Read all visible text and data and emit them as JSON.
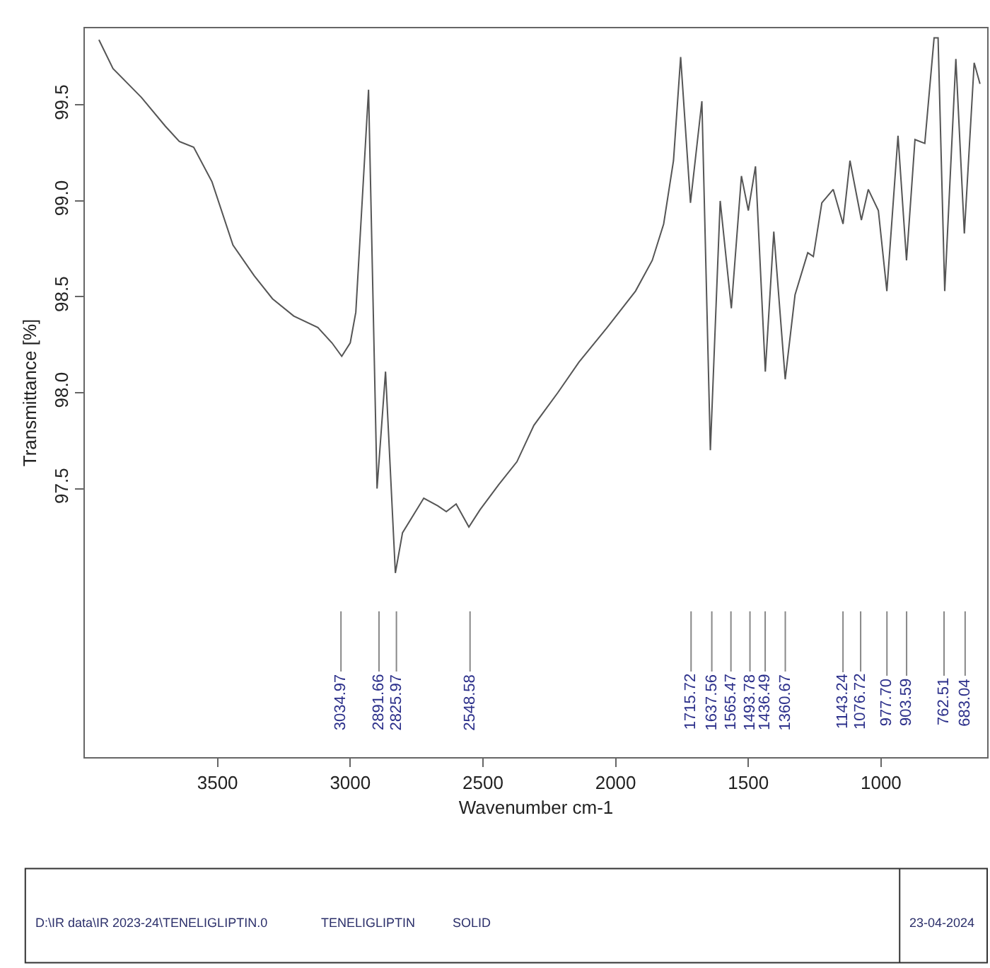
{
  "chart_data": {
    "type": "line",
    "xlabel": "Wavenumber cm-1",
    "ylabel": "Transmittance [%]",
    "color": "#555555",
    "x": [
      3947,
      3894,
      3787,
      3697,
      3644,
      3590,
      3521,
      3442,
      3362,
      3293,
      3213,
      3122,
      3069,
      3032,
      3000,
      2979,
      2931,
      2899,
      2867,
      2830,
      2803,
      2723,
      2670,
      2638,
      2601,
      2553,
      2511,
      2441,
      2372,
      2308,
      2218,
      2138,
      2032,
      1925,
      1862,
      1819,
      1782,
      1755,
      1718,
      1675,
      1643,
      1606,
      1564,
      1526,
      1500,
      1473,
      1436,
      1404,
      1361,
      1324,
      1276,
      1255,
      1223,
      1180,
      1143,
      1117,
      1074,
      1048,
      1010,
      978,
      936,
      904,
      872,
      835,
      800,
      785,
      760,
      718,
      686,
      649,
      627
    ],
    "values": [
      99.84,
      99.69,
      99.54,
      99.39,
      99.31,
      99.28,
      99.1,
      98.77,
      98.61,
      98.49,
      98.4,
      98.34,
      98.26,
      98.19,
      98.26,
      98.42,
      99.58,
      97.5,
      98.11,
      97.06,
      97.27,
      97.45,
      97.41,
      97.38,
      97.42,
      97.3,
      97.39,
      97.52,
      97.64,
      97.83,
      98.0,
      98.16,
      98.34,
      98.53,
      98.69,
      98.88,
      99.21,
      99.75,
      98.99,
      99.52,
      97.7,
      99.0,
      98.44,
      99.13,
      98.95,
      99.18,
      98.11,
      98.84,
      98.07,
      98.51,
      98.73,
      98.71,
      98.99,
      99.06,
      98.88,
      99.21,
      98.9,
      99.06,
      98.95,
      98.53,
      99.34,
      98.69,
      99.32,
      99.3,
      99.85,
      99.85,
      98.53,
      99.74,
      98.83,
      99.72,
      99.61
    ],
    "xlim": [
      4000,
      600
    ],
    "ylim": [
      96.1,
      99.9
    ],
    "xticks": [
      3500,
      3000,
      2500,
      2000,
      1500,
      1000
    ],
    "yticks": [
      {
        "value": 97.5,
        "label": "97.5"
      },
      {
        "value": 98,
        "label": "98.0"
      },
      {
        "value": 98.5,
        "label": "98.5"
      },
      {
        "value": 99,
        "label": "99.0"
      },
      {
        "value": 99.5,
        "label": "99.5"
      }
    ],
    "annotations": [
      {
        "text": "3034.97",
        "x": 3034.97
      },
      {
        "text": "2891.66",
        "x": 2891.66
      },
      {
        "text": "2825.97",
        "x": 2825.97
      },
      {
        "text": "2548.58",
        "x": 2548.58
      },
      {
        "text": "1715.72",
        "x": 1715.72
      },
      {
        "text": "1637.56",
        "x": 1637.56
      },
      {
        "text": "1565.47",
        "x": 1565.47
      },
      {
        "text": "1493.78",
        "x": 1493.78
      },
      {
        "text": "1436.49",
        "x": 1436.49
      },
      {
        "text": "1360.67",
        "x": 1360.67
      },
      {
        "text": "1143.24",
        "x": 1143.24
      },
      {
        "text": "1076.72",
        "x": 1076.72
      },
      {
        "text": "977.70",
        "x": 977.7
      },
      {
        "text": "903.59",
        "x": 903.59
      },
      {
        "text": "762.51",
        "x": 762.51
      },
      {
        "text": "683.04",
        "x": 683.04
      },
      "D:\\IR data\\IR 2023-24\\TENELIGLIPTIN.0",
      "TENELIGLIPTIN",
      "SOLID",
      "23-04-2024"
    ]
  }
}
